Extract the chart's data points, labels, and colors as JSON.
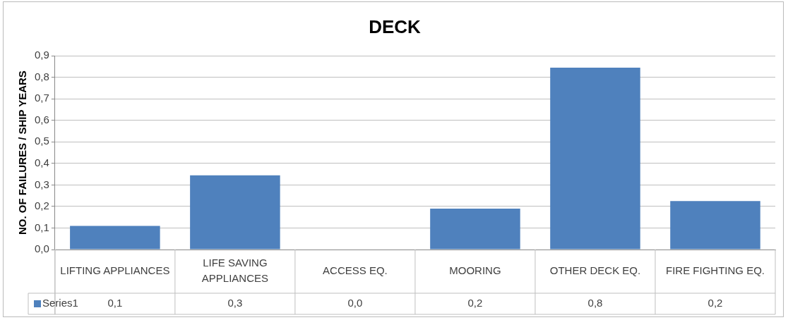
{
  "chart_data": {
    "type": "bar",
    "title": "DECK",
    "ylabel": "NO. OF FAILURES / SHIP YEARS",
    "categories": [
      "LIFTING APPLIANCES",
      "LIFE SAVING APPLIANCES",
      "ACCESS EQ.",
      "MOORING",
      "OTHER DECK EQ.",
      "FIRE FIGHTING EQ."
    ],
    "series": [
      {
        "name": "Series1",
        "color": "#4f81bd",
        "values": [
          0.11,
          0.345,
          0,
          0.19,
          0.845,
          0.225
        ],
        "value_labels": [
          "0,1",
          "0,3",
          "0,0",
          "0,2",
          "0,8",
          "0,2"
        ]
      }
    ],
    "ylim": [
      0,
      0.9
    ],
    "yticks": [
      {
        "value": 0,
        "label": "0,0"
      },
      {
        "value": 0.1,
        "label": "0,1"
      },
      {
        "value": 0.2,
        "label": "0,2"
      },
      {
        "value": 0.3,
        "label": "0,3"
      },
      {
        "value": 0.4,
        "label": "0,4"
      },
      {
        "value": 0.5,
        "label": "0,5"
      },
      {
        "value": 0.6,
        "label": "0,6"
      },
      {
        "value": 0.7,
        "label": "0,7"
      },
      {
        "value": 0.8,
        "label": "0,8"
      },
      {
        "value": 0.9,
        "label": "0,9"
      }
    ],
    "grid": "y",
    "legend": "bottom left"
  }
}
